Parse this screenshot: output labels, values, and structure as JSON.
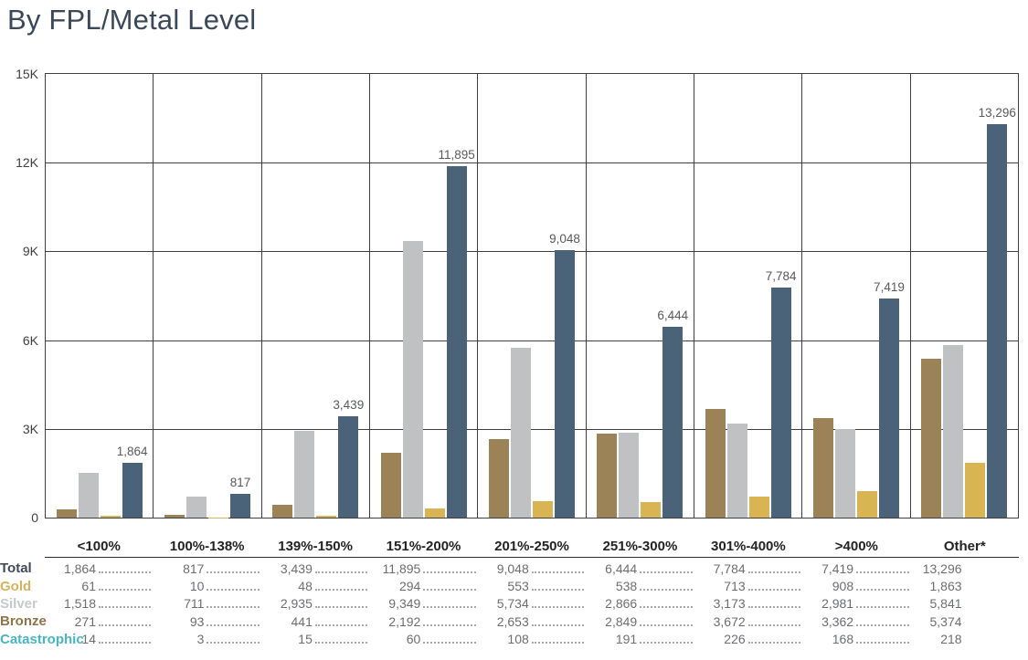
{
  "title": "By FPL/Metal Level",
  "colors": {
    "title_text": "#3b4859",
    "grid": "#3f3f3f",
    "axis_tick_text": "#404040",
    "bar_data_label_text": "#58595b",
    "table_value_text": "#6d6e71",
    "dot_leader": "#a7a9ac",
    "header_text": "#232323",
    "total": "#4a6378",
    "gold": "#d9b452",
    "silver": "#bfc1c3",
    "bronze": "#9c8357",
    "catastrophic": "#48b5c4"
  },
  "chart_data": {
    "type": "bar",
    "title": "By FPL/Metal Level",
    "categories": [
      "<100%",
      "100%-138%",
      "139%-150%",
      "151%-200%",
      "201%-250%",
      "251%-300%",
      "301%-400%",
      ">400%",
      "Other*"
    ],
    "series": [
      {
        "name": "Bronze",
        "color": "#9c8357",
        "values": [
          271,
          93,
          441,
          2192,
          2653,
          2849,
          3672,
          3362,
          5374
        ]
      },
      {
        "name": "Silver",
        "color": "#bfc1c3",
        "values": [
          1518,
          711,
          2935,
          9349,
          5734,
          2866,
          3173,
          2981,
          5841
        ]
      },
      {
        "name": "Gold",
        "color": "#d9b452",
        "values": [
          61,
          10,
          48,
          294,
          553,
          538,
          713,
          908,
          1863
        ]
      },
      {
        "name": "Total",
        "color": "#4a6378",
        "values": [
          1864,
          817,
          3439,
          11895,
          9048,
          6444,
          7784,
          7419,
          13296
        ],
        "show_data_labels": true
      }
    ],
    "ylim": [
      0,
      15000
    ],
    "yticks": [
      "15K",
      "12K",
      "9K",
      "6K",
      "3K",
      "0"
    ],
    "grid": "horizontal gridlines every 3K plus vertical category separators",
    "legend_position": "table-below-chart",
    "data_labels_on": "Total"
  },
  "table": {
    "columns": [
      "<100%",
      "100%-138%",
      "139%-150%",
      "151%-200%",
      "201%-250%",
      "251%-300%",
      "301%-400%",
      ">400%",
      "Other*"
    ],
    "rows": [
      {
        "label": "Total",
        "label_color": "#3e4a59",
        "values": [
          "1,864",
          "817",
          "3,439",
          "11,895",
          "9,048",
          "6,444",
          "7,784",
          "7,419",
          "13,296"
        ]
      },
      {
        "label": "Gold",
        "label_color": "#d6b25e",
        "values": [
          "61",
          "10",
          "48",
          "294",
          "553",
          "538",
          "713",
          "908",
          "1,863"
        ]
      },
      {
        "label": "Silver",
        "label_color": "#c6c8ca",
        "values": [
          "1,518",
          "711",
          "2,935",
          "9,349",
          "5,734",
          "2,866",
          "3,173",
          "2,981",
          "5,841"
        ]
      },
      {
        "label": "Bronze",
        "label_color": "#8e7548",
        "values": [
          "271",
          "93",
          "441",
          "2,192",
          "2,653",
          "2,849",
          "3,672",
          "3,362",
          "5,374"
        ]
      },
      {
        "label": "Catastrophic",
        "label_color": "#48b5c4",
        "values": [
          "14",
          "3",
          "15",
          "60",
          "108",
          "191",
          "226",
          "168",
          "218"
        ]
      }
    ]
  }
}
